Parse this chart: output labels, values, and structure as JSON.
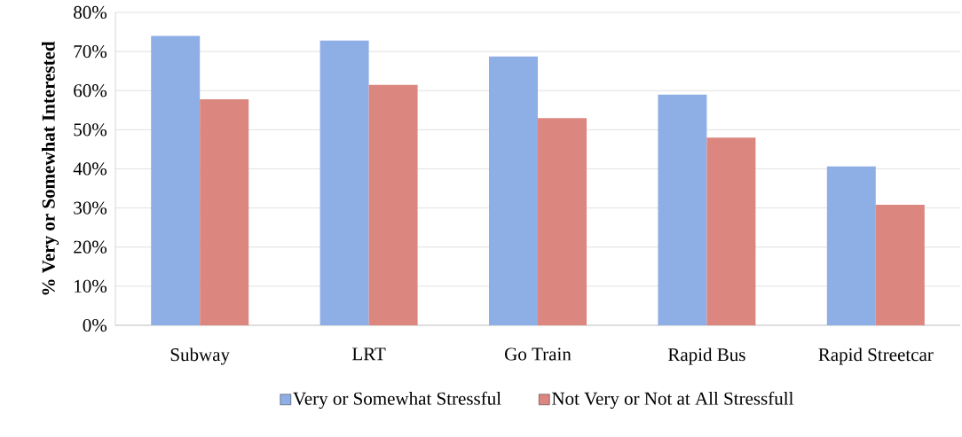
{
  "chart_data": {
    "type": "bar",
    "ylabel": "% Very or Somewhat Interested",
    "categories": [
      "Subway",
      "LRT",
      "Go Train",
      "Rapid Bus",
      "Rapid Streetcar"
    ],
    "series": [
      {
        "name": "Very or Somewhat Stressful",
        "color": "#8eaee6",
        "values": [
          74,
          72.8,
          68.7,
          59,
          40.6
        ]
      },
      {
        "name": "Not Very or Not at All Stressfull",
        "color": "#dc8680",
        "values": [
          57.8,
          61.5,
          53,
          48,
          30.8
        ]
      }
    ],
    "ylim": [
      0,
      80
    ],
    "yticks": [
      {
        "value": 0,
        "label": "0%"
      },
      {
        "value": 10,
        "label": "10%"
      },
      {
        "value": 20,
        "label": "20%"
      },
      {
        "value": 30,
        "label": "30%"
      },
      {
        "value": 40,
        "label": "40%"
      },
      {
        "value": 50,
        "label": "50%"
      },
      {
        "value": 60,
        "label": "60%"
      },
      {
        "value": 70,
        "label": "70%"
      },
      {
        "value": 80,
        "label": "80%"
      }
    ],
    "grid": "y",
    "legend": "bottom"
  }
}
